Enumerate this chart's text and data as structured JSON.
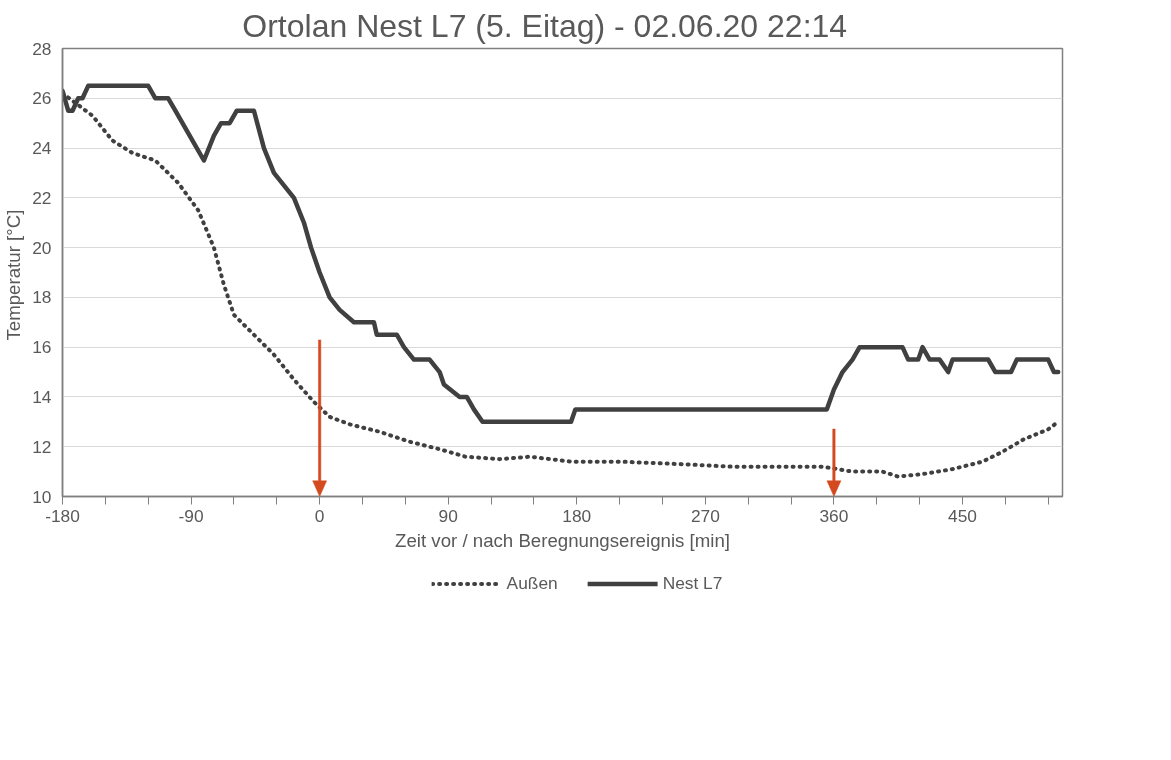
{
  "chart_data": {
    "type": "line",
    "title": "Ortolan  Nest L7 (5. Eitag)  -  02.06.20  22:14",
    "xlabel": "Zeit vor / nach Beregnungsereignis [min]",
    "ylabel": "Temperatur  [°C]",
    "xlim": [
      -180,
      520
    ],
    "ylim": [
      10,
      28
    ],
    "xticks": [
      -180,
      {
        "value": -150,
        "label": null
      },
      {
        "value": -120,
        "label": null
      },
      -90,
      {
        "value": -60,
        "label": null
      },
      {
        "value": -30,
        "label": null
      },
      0,
      {
        "value": 30,
        "label": null
      },
      {
        "value": 60,
        "label": null
      },
      90,
      {
        "value": 120,
        "label": null
      },
      {
        "value": 150,
        "label": null
      },
      180,
      {
        "value": 210,
        "label": null
      },
      {
        "value": 240,
        "label": null
      },
      270,
      {
        "value": 300,
        "label": null
      },
      {
        "value": 330,
        "label": null
      },
      360,
      {
        "value": 390,
        "label": null
      },
      {
        "value": 420,
        "label": null
      },
      450,
      {
        "value": 480,
        "label": null
      },
      {
        "value": 510,
        "label": null
      }
    ],
    "yticks": [
      10,
      12,
      14,
      16,
      18,
      20,
      22,
      24,
      26,
      28
    ],
    "grid": "y",
    "legend": "bottom",
    "ref_lines": [
      {
        "axis": "x",
        "value": 0,
        "color": "#d24a1e"
      },
      {
        "axis": "x",
        "value": 360,
        "color": "#d24a1e"
      }
    ],
    "series": [
      {
        "name": "Außen",
        "color": "#404040",
        "line_style": "dotted",
        "x": [
          -180,
          -159,
          -145,
          -131,
          -115,
          -99,
          -85,
          -74,
          -67,
          -60,
          -46,
          -32,
          -18,
          -4,
          7,
          21,
          42,
          63,
          84,
          102,
          126,
          147,
          176,
          211,
          253,
          288,
          331,
          352,
          373,
          394,
          405,
          422,
          443,
          464,
          478,
          493,
          510,
          517
        ],
        "values": [
          26.2,
          25.3,
          24.3,
          23.8,
          23.5,
          22.6,
          21.5,
          20,
          18.5,
          17.3,
          16.5,
          15.7,
          14.7,
          13.8,
          13.2,
          12.9,
          12.6,
          12.2,
          11.9,
          11.6,
          11.5,
          11.6,
          11.4,
          11.4,
          11.3,
          11.2,
          11.2,
          11.2,
          11.0,
          11.0,
          10.8,
          10.9,
          11.1,
          11.4,
          11.8,
          12.3,
          12.7,
          13.0
        ]
      },
      {
        "name": "Nest L7",
        "color": "#404040",
        "line_style": "solid",
        "x": [
          -180,
          -176,
          -173,
          -169,
          -166,
          -162,
          -120,
          -115,
          -106,
          -101,
          -96,
          -91,
          -81,
          -74,
          -69,
          -63,
          -58,
          -46,
          -39,
          -32,
          -25,
          -18,
          -11,
          -6,
          0,
          7,
          14,
          24,
          38,
          40,
          54,
          59,
          66,
          77,
          84,
          87,
          98,
          103,
          108,
          114,
          176,
          179,
          355,
          360,
          366,
          373,
          378,
          408,
          412,
          419,
          422,
          427,
          434,
          440,
          443,
          468,
          473,
          484,
          488,
          510,
          514,
          517
        ],
        "values": [
          26.3,
          25.5,
          25.5,
          26,
          26,
          26.5,
          26.5,
          26,
          26,
          25.5,
          25,
          24.5,
          23.5,
          24.5,
          25,
          25,
          25.5,
          25.5,
          24,
          23,
          22.5,
          22,
          21,
          20,
          19,
          18,
          17.5,
          17,
          17,
          16.5,
          16.5,
          16,
          15.5,
          15.5,
          15,
          14.5,
          14,
          14,
          13.5,
          13,
          13,
          13.5,
          13.5,
          14.3,
          15,
          15.5,
          16,
          16,
          15.5,
          15.5,
          16,
          15.5,
          15.5,
          15,
          15.5,
          15.5,
          15,
          15,
          15.5,
          15.5,
          15,
          15
        ]
      }
    ]
  }
}
